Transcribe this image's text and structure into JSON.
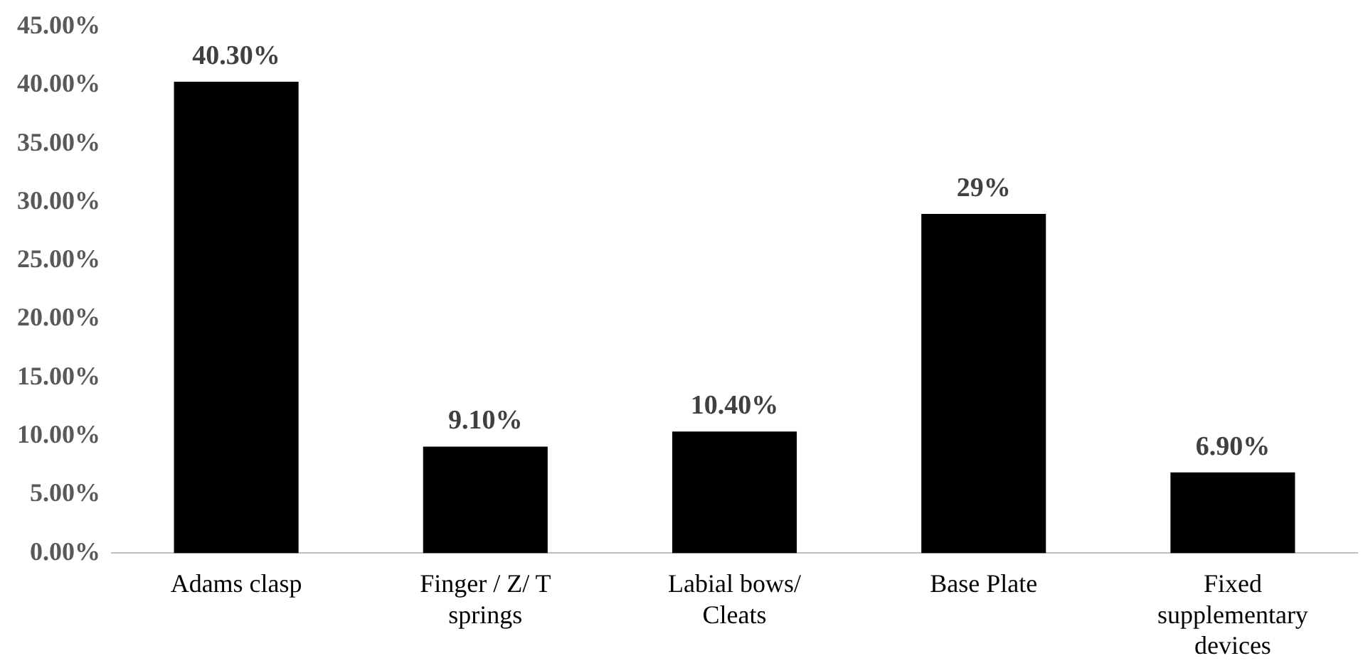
{
  "chart_data": {
    "type": "bar",
    "categories": [
      "Adams clasp",
      "Finger / Z/ T springs",
      "Labial bows/ Cleats",
      "Base Plate",
      "Fixed supplementary devices"
    ],
    "values": [
      40.3,
      9.1,
      10.4,
      29,
      6.9
    ],
    "color": "#000000",
    "value_labels": [
      "40.30%",
      "9.10%",
      "10.40%",
      "29%",
      "6.90%"
    ],
    "ylim": [
      0,
      45
    ],
    "yticks": [
      {
        "value": 0,
        "label": "0.00%"
      },
      {
        "value": 5,
        "label": "5.00%"
      },
      {
        "value": 10,
        "label": "10.00%"
      },
      {
        "value": 15,
        "label": "15.00%"
      },
      {
        "value": 20,
        "label": "20.00%"
      },
      {
        "value": 25,
        "label": "25.00%"
      },
      {
        "value": 30,
        "label": "30.00%"
      },
      {
        "value": 35,
        "label": "35.00%"
      },
      {
        "value": 40,
        "label": "40.00%"
      },
      {
        "value": 45,
        "label": "45.00%"
      }
    ],
    "grid": false,
    "legend": false
  }
}
